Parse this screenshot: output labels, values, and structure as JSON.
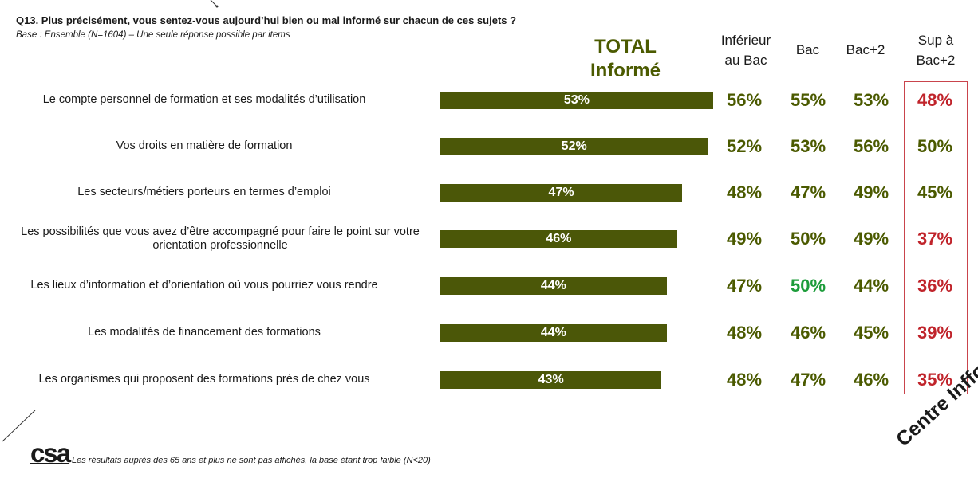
{
  "header": {
    "question": "Q13. Plus précisément, vous sentez-vous aujourd’hui bien ou mal informé sur chacun de ces sujets ?",
    "base": "Base : Ensemble (N=1604) – Une seule réponse possible par items"
  },
  "total_title": {
    "line1": "TOTAL",
    "line2": "Informé"
  },
  "columns": [
    {
      "line1": "Inférieur",
      "line2": "au Bac"
    },
    {
      "line1": "Bac",
      "line2": ""
    },
    {
      "line1": "Bac+2",
      "line2": ""
    },
    {
      "line1": "Sup à",
      "line2": "Bac+2"
    }
  ],
  "footer": {
    "note": "Les résultats auprès des 65 ans et plus ne sont pas affichés, la base étant trop faible (N<20)",
    "logo": "csa",
    "corner_text": "Centre Inffo"
  },
  "colors": {
    "bar": "#4b5708",
    "title_green": "#4b5a00",
    "cell_green": "#4b5a00",
    "highlight_green": "#1c9c3a",
    "red": "#c0242b",
    "box_border": "#c9444c"
  },
  "chart_data": {
    "type": "table",
    "title": "TOTAL Informé",
    "categories": [
      "Le compte personnel de formation et ses modalités d’utilisation",
      "Vos droits en matière de formation",
      "Les secteurs/métiers porteurs en termes d’emploi",
      "Les possibilités que vous avez d’être accompagné pour faire le point sur votre orientation professionnelle",
      "Les lieux d’information et d’orientation où vous pourriez vous rendre",
      "Les modalités de financement des formations",
      "Les organismes qui proposent des formations près de chez vous"
    ],
    "total_values": [
      53,
      52,
      47,
      46,
      44,
      44,
      43
    ],
    "total_labels": [
      "53%",
      "52%",
      "47%",
      "46%",
      "44%",
      "44%",
      "43%"
    ],
    "series": [
      {
        "name": "Inférieur au Bac",
        "values": [
          56,
          52,
          48,
          49,
          47,
          48,
          48
        ],
        "labels": [
          "56%",
          "52%",
          "48%",
          "49%",
          "47%",
          "48%",
          "48%"
        ]
      },
      {
        "name": "Bac",
        "values": [
          55,
          53,
          47,
          50,
          50,
          46,
          47
        ],
        "labels": [
          "55%",
          "53%",
          "47%",
          "50%",
          "50%",
          "46%",
          "47%"
        ],
        "highlight": [
          false,
          false,
          false,
          false,
          true,
          false,
          false
        ]
      },
      {
        "name": "Bac+2",
        "values": [
          53,
          56,
          49,
          49,
          44,
          45,
          46
        ],
        "labels": [
          "53%",
          "56%",
          "49%",
          "49%",
          "44%",
          "45%",
          "46%"
        ]
      },
      {
        "name": "Sup à Bac+2",
        "values": [
          48,
          50,
          45,
          37,
          36,
          39,
          35
        ],
        "labels": [
          "48%",
          "50%",
          "45%",
          "37%",
          "36%",
          "39%",
          "35%"
        ],
        "red": [
          true,
          false,
          false,
          true,
          true,
          true,
          true
        ]
      }
    ]
  }
}
